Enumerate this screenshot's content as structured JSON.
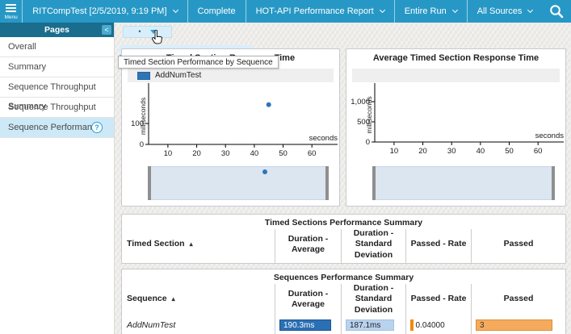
{
  "topbar": {
    "menu_label": "Menu",
    "run_selector": "RITCompTest [2/5/2019, 9:19 PM]",
    "status": "Complete",
    "report_selector": "HOT-API Performance Report",
    "scope_selector": "Entire Run",
    "sources_selector": "All Sources"
  },
  "sidebar": {
    "header": "Pages",
    "collapse_label": "<",
    "items": [
      {
        "label": "Overall",
        "selected": false
      },
      {
        "label": "Summary",
        "selected": false
      },
      {
        "label": "Sequence Throughput Summary",
        "selected": false
      },
      {
        "label": "Sequence Throughput",
        "selected": false
      },
      {
        "label": "Sequence Performance",
        "selected": true
      }
    ]
  },
  "page_controls": {
    "dot": "•",
    "tooltip": "Timed Section Performance by Sequence"
  },
  "icons": {
    "sort_asc": "▴",
    "help_glyph": "?"
  },
  "chart_data": [
    {
      "type": "scatter",
      "title": "Timed Section Response Time",
      "legend": [
        "AddNumTest"
      ],
      "xlabel": "seconds",
      "ylabel": "milliseconds",
      "xlim": [
        3.3,
        67.8
      ],
      "ylim": [
        0,
        270
      ],
      "x_ticks": [
        {
          "v": 10,
          "label": "10"
        },
        {
          "v": 20,
          "label": "20"
        },
        {
          "v": 30,
          "label": "30"
        },
        {
          "v": 40,
          "label": "40"
        },
        {
          "v": 50,
          "label": "50"
        },
        {
          "v": 60,
          "label": "60"
        }
      ],
      "y_ticks": [
        {
          "v": 0,
          "label": "0"
        },
        {
          "v": 100,
          "label": "100"
        }
      ],
      "grid": false,
      "legend_position": "top",
      "series": [
        {
          "name": "AddNumTest",
          "color": "#2e75b6",
          "points": [
            [
              45,
              190
            ]
          ]
        }
      ],
      "selector_points": [
        45
      ]
    },
    {
      "type": "scatter",
      "title": "Average Timed Section Response Time",
      "legend": [],
      "xlabel": "seconds",
      "ylabel": "milliseconds",
      "xlim": [
        3.3,
        67.8
      ],
      "ylim": [
        0,
        1340
      ],
      "x_ticks": [
        {
          "v": 10,
          "label": "10"
        },
        {
          "v": 20,
          "label": "20"
        },
        {
          "v": 30,
          "label": "30"
        },
        {
          "v": 40,
          "label": "40"
        },
        {
          "v": 50,
          "label": "50"
        },
        {
          "v": 60,
          "label": "60"
        }
      ],
      "y_ticks": [
        {
          "v": 0,
          "label": "0"
        },
        {
          "v": 500,
          "label": "500"
        },
        {
          "v": 1000,
          "label": "1,000"
        }
      ],
      "grid": false,
      "legend_position": "top",
      "series": [],
      "selector_points": []
    }
  ],
  "tables": [
    {
      "title": "Timed Sections Performance Summary",
      "sorted_by": "Timed Section",
      "columns": [
        "Timed Section",
        "Duration - Average",
        "Duration - Standard Deviation",
        "Passed - Rate",
        "Passed"
      ],
      "rows": []
    },
    {
      "title": "Sequences Performance Summary",
      "sorted_by": "Sequence",
      "columns": [
        "Sequence",
        "Duration - Average",
        "Duration - Standard Deviation",
        "Passed - Rate",
        "Passed"
      ],
      "rows": [
        {
          "cells": [
            "AddNumTest",
            "190.3ms",
            "187.1ms",
            "0.04000",
            "3"
          ],
          "bars": [
            null,
            0.9,
            0.87,
            0.05,
            0.9
          ]
        }
      ]
    }
  ],
  "colors": {
    "topbar": "#2798c5",
    "sidebar_header": "#1a6d8d",
    "collapse_btn": "#49a9ce",
    "selected_item": "#cde9f7",
    "help_blue": "#2d9fd8",
    "dropdown_bg": "#d9eefa",
    "accent_blue": "#2e75b6",
    "selector_fill": "#dce6f1",
    "bar_dark_blue": "#2b6fb4",
    "bar_light_blue": "#b9d2ee",
    "bar_orange": "#f5ab5e",
    "bar_orange_accent": "#ef8b0e"
  }
}
